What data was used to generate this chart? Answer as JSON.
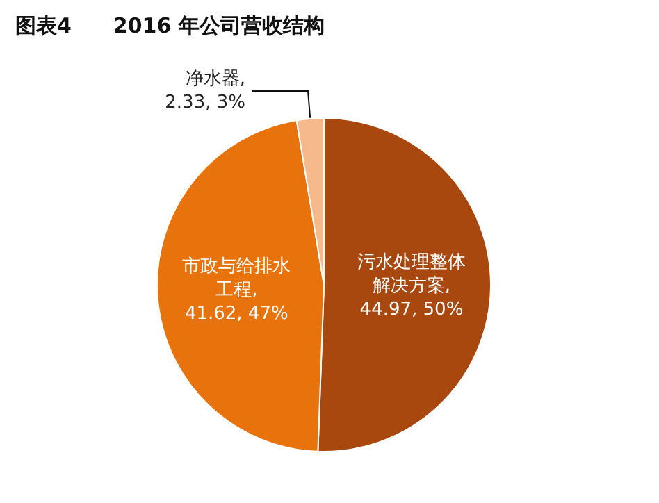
{
  "chart_data": {
    "type": "pie",
    "title": "图表4　　2016 年公司营收结构",
    "categories": [
      "污水处理整体解决方案",
      "市政与给排水工程",
      "净水器"
    ],
    "values": [
      44.97,
      41.62,
      2.33
    ],
    "value_labels": [
      ", 44.97, 50%",
      ", 41.62, 47%",
      ", 2.33, 3%"
    ],
    "colors": [
      "#a8480f",
      "#e8720c",
      "#f6b98c"
    ]
  }
}
